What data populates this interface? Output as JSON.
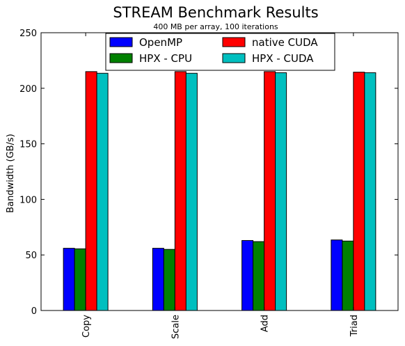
{
  "chart_data": {
    "type": "bar",
    "title": "STREAM Benchmark Results",
    "subtitle": "400 MB per array, 100 iterations",
    "xlabel": "",
    "ylabel": "Bandwidth (GB/s)",
    "ylim": [
      0,
      250
    ],
    "yticks": [
      0,
      50,
      100,
      150,
      200,
      250
    ],
    "categories": [
      "Copy",
      "Scale",
      "Add",
      "Triad"
    ],
    "series": [
      {
        "name": "OpenMP",
        "color": "#0000ff",
        "values": [
          56.0,
          56.0,
          63.0,
          63.5
        ]
      },
      {
        "name": "HPX - CPU",
        "color": "#008000",
        "values": [
          55.5,
          55.0,
          62.0,
          62.5
        ]
      },
      {
        "name": "native CUDA",
        "color": "#ff0000",
        "values": [
          215.0,
          215.0,
          215.0,
          214.5
        ]
      },
      {
        "name": "HPX - CUDA",
        "color": "#00bfbf",
        "values": [
          213.5,
          213.5,
          214.0,
          214.0
        ]
      }
    ],
    "legend": {
      "position": "top-center",
      "columns": 2
    },
    "grid": false
  }
}
